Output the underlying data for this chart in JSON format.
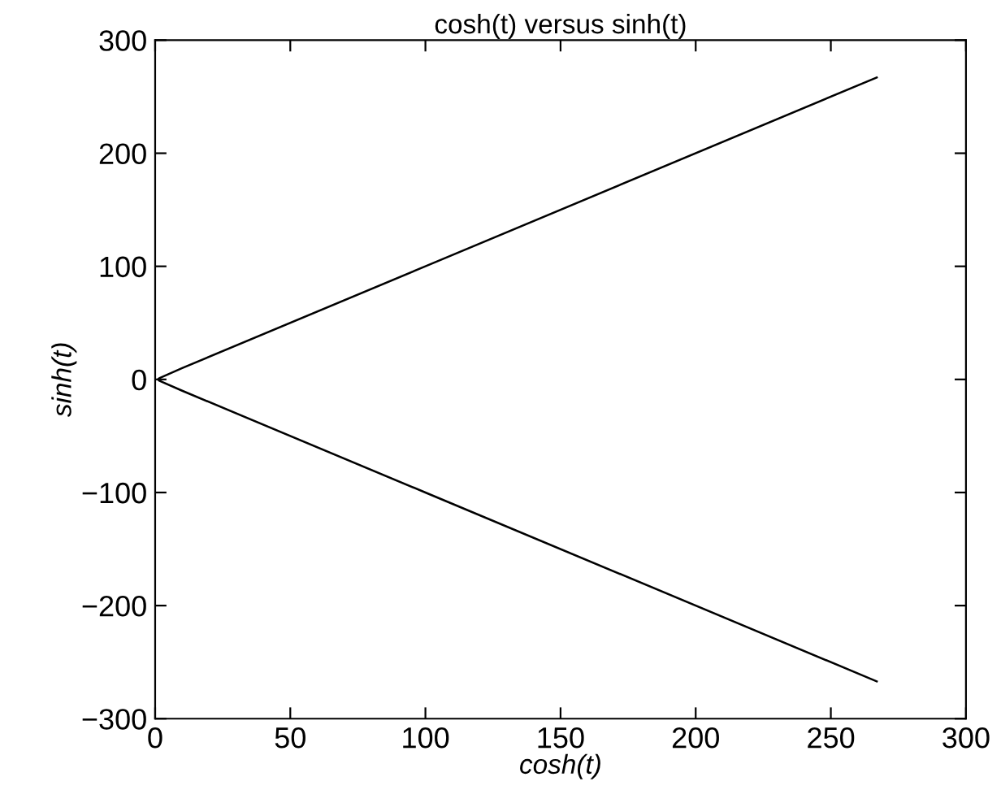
{
  "chart_data": {
    "type": "line",
    "title": "cosh(t) versus sinh(t)",
    "xlabel": "cosh(t)",
    "ylabel": "sinh(t)",
    "x": [
      267,
      100,
      10,
      1.5,
      1,
      1.5,
      10,
      100,
      267
    ],
    "series": [
      {
        "color": "#000000",
        "values": [
          -267,
          -100,
          -10,
          -1.1,
          0,
          1.1,
          10,
          100,
          267
        ]
      }
    ],
    "xlim": [
      0,
      300
    ],
    "ylim": [
      -300,
      300
    ],
    "xticks": [
      0,
      50,
      100,
      150,
      200,
      250,
      300
    ],
    "yticks": [
      {
        "value": -300,
        "label": "−300"
      },
      {
        "value": -200,
        "label": "−200"
      },
      {
        "value": -100,
        "label": "−100"
      },
      0,
      100,
      200,
      300
    ],
    "grid": false,
    "legend": false,
    "marker": "none",
    "line_style": "solid"
  }
}
